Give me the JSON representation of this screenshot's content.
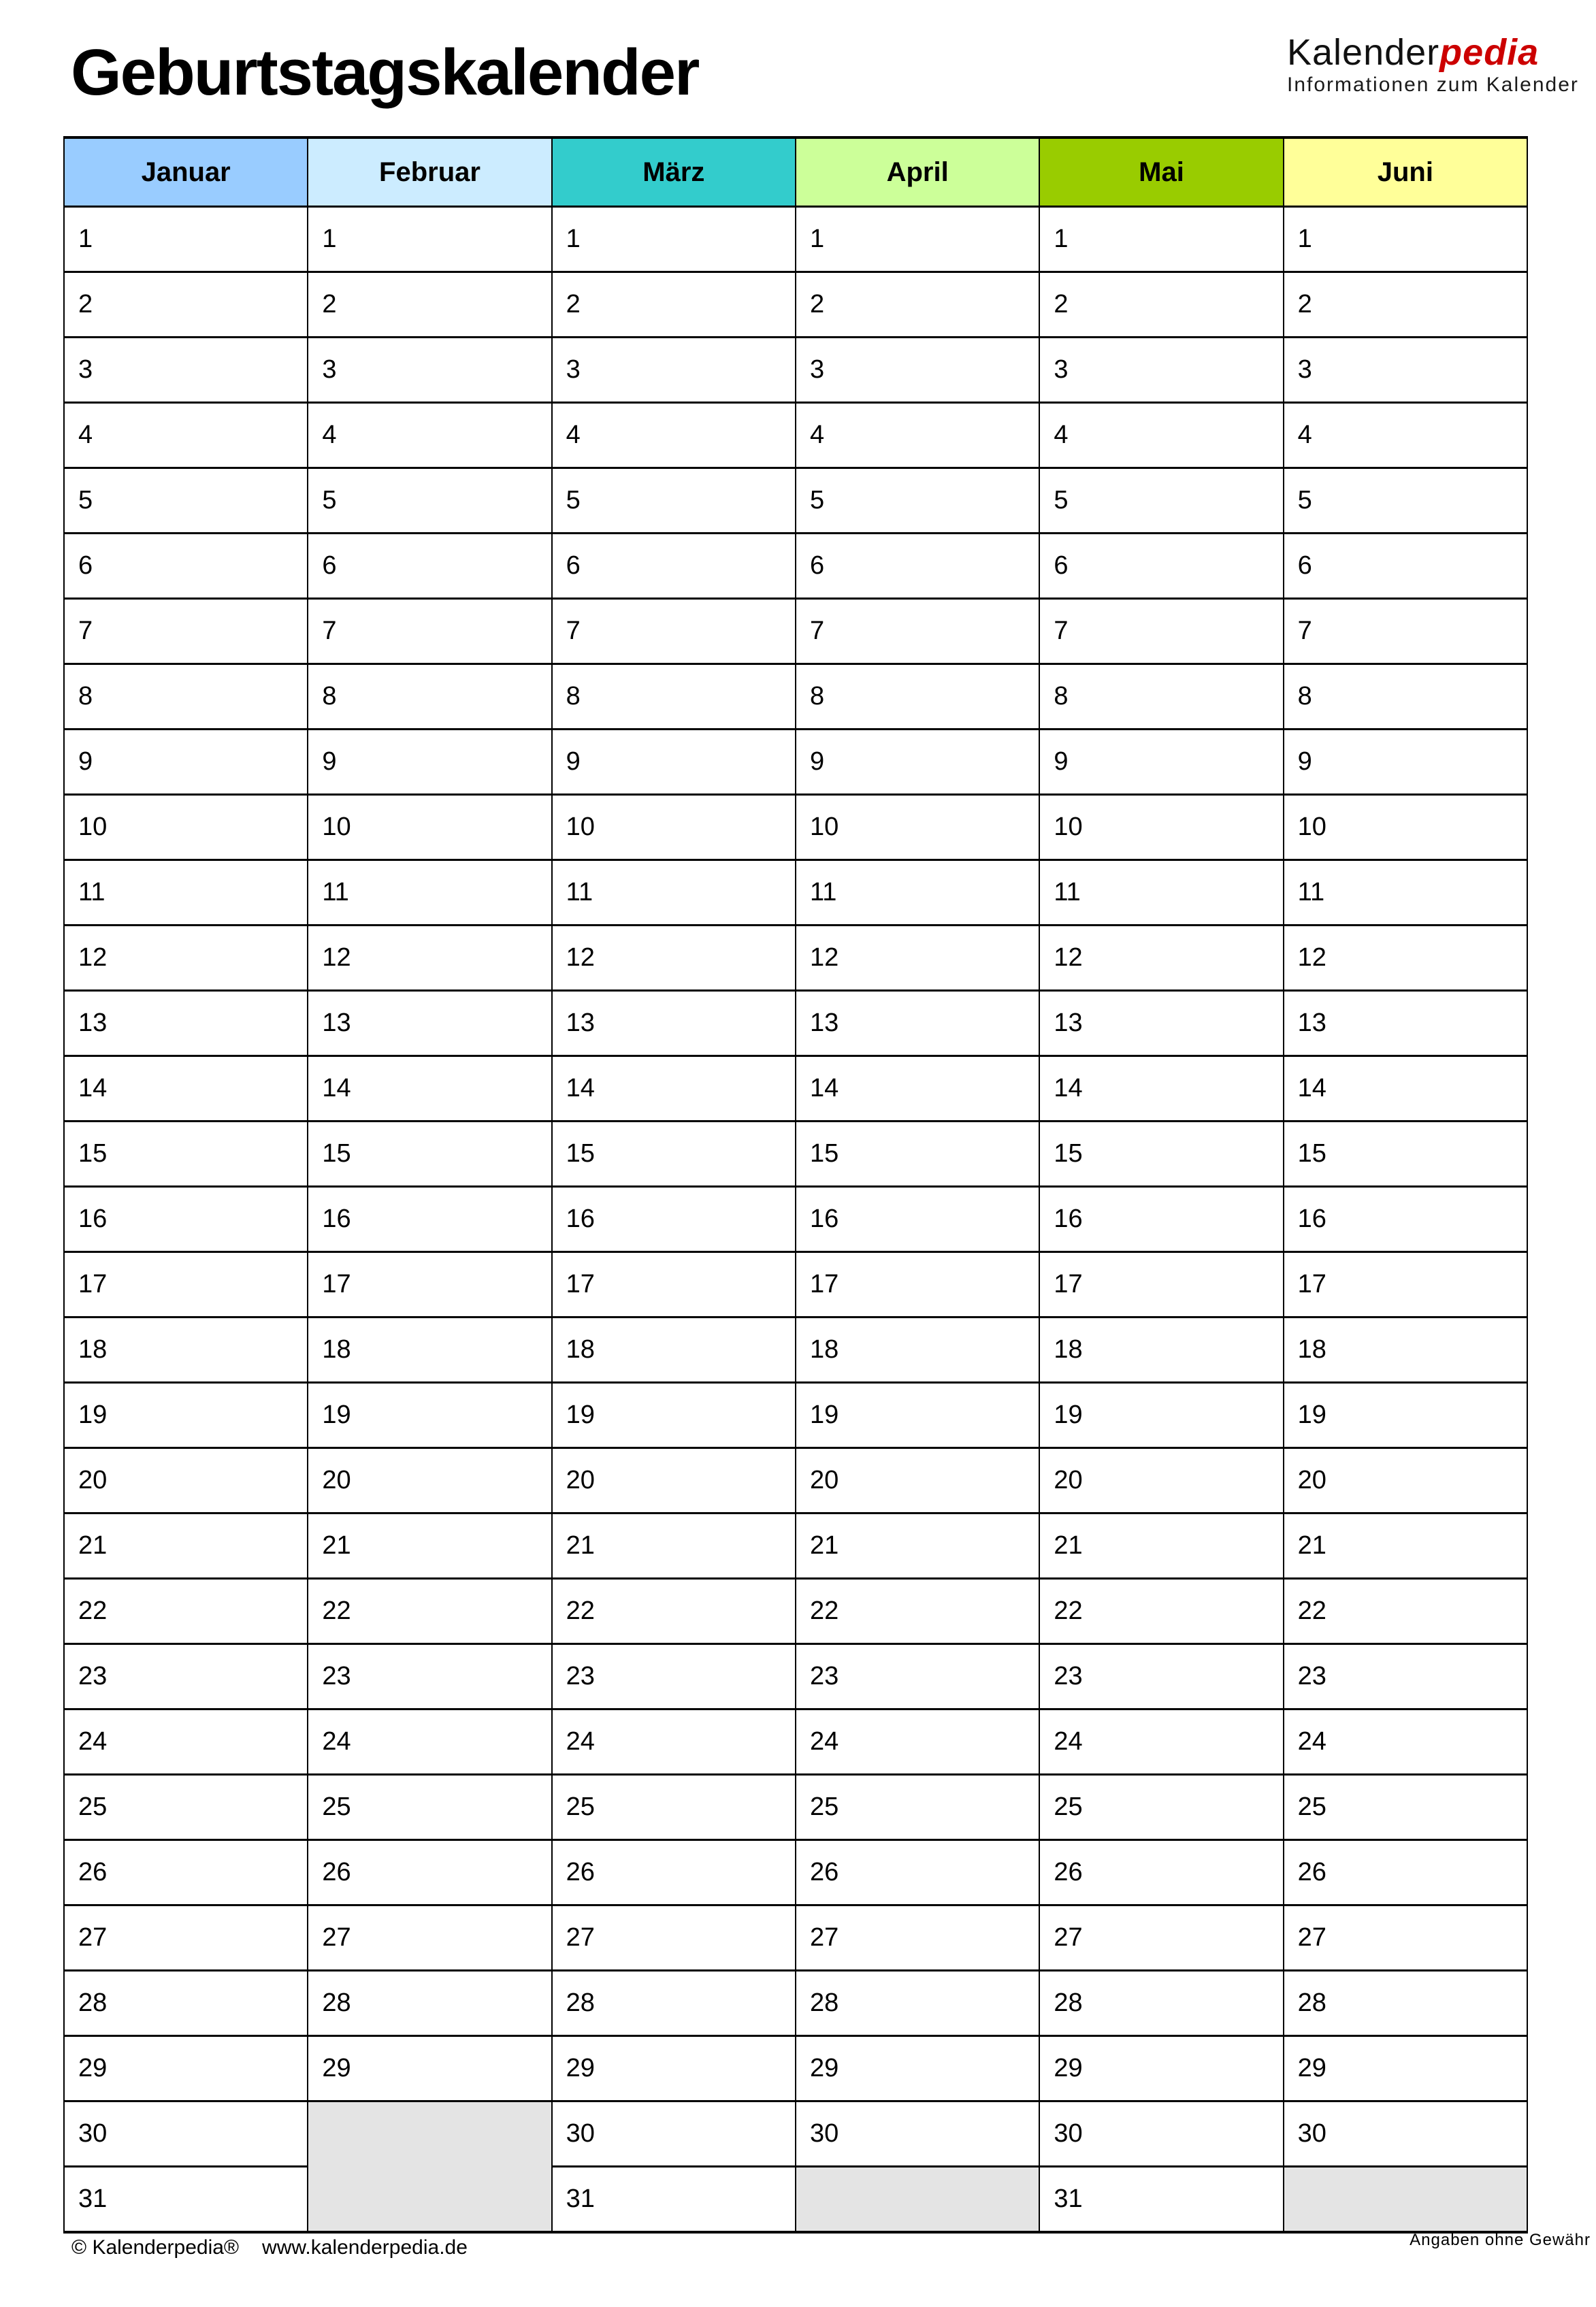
{
  "page": {
    "title": "Geburtstagskalender",
    "logo": {
      "brand_black": "Kalender",
      "brand_red": "pedia",
      "brand_red_color": "#CC0000",
      "subtitle": "Informationen zum Kalender"
    },
    "footer": {
      "copyright": "© Kalenderpedia®",
      "url": "www.kalenderpedia.de",
      "disclaimer": "Angaben ohne Gewähr"
    }
  },
  "calendar": {
    "max_days": 31,
    "empty_cell_color": "#E4E4E4",
    "months": [
      {
        "name": "Januar",
        "color": "#99CCFF",
        "days": 31
      },
      {
        "name": "Februar",
        "color": "#CCECFF",
        "days": 29
      },
      {
        "name": "März",
        "color": "#33CCCC",
        "days": 31
      },
      {
        "name": "April",
        "color": "#CCFF99",
        "days": 30
      },
      {
        "name": "Mai",
        "color": "#99CC00",
        "days": 31
      },
      {
        "name": "Juni",
        "color": "#FFFF99",
        "days": 30
      }
    ]
  }
}
